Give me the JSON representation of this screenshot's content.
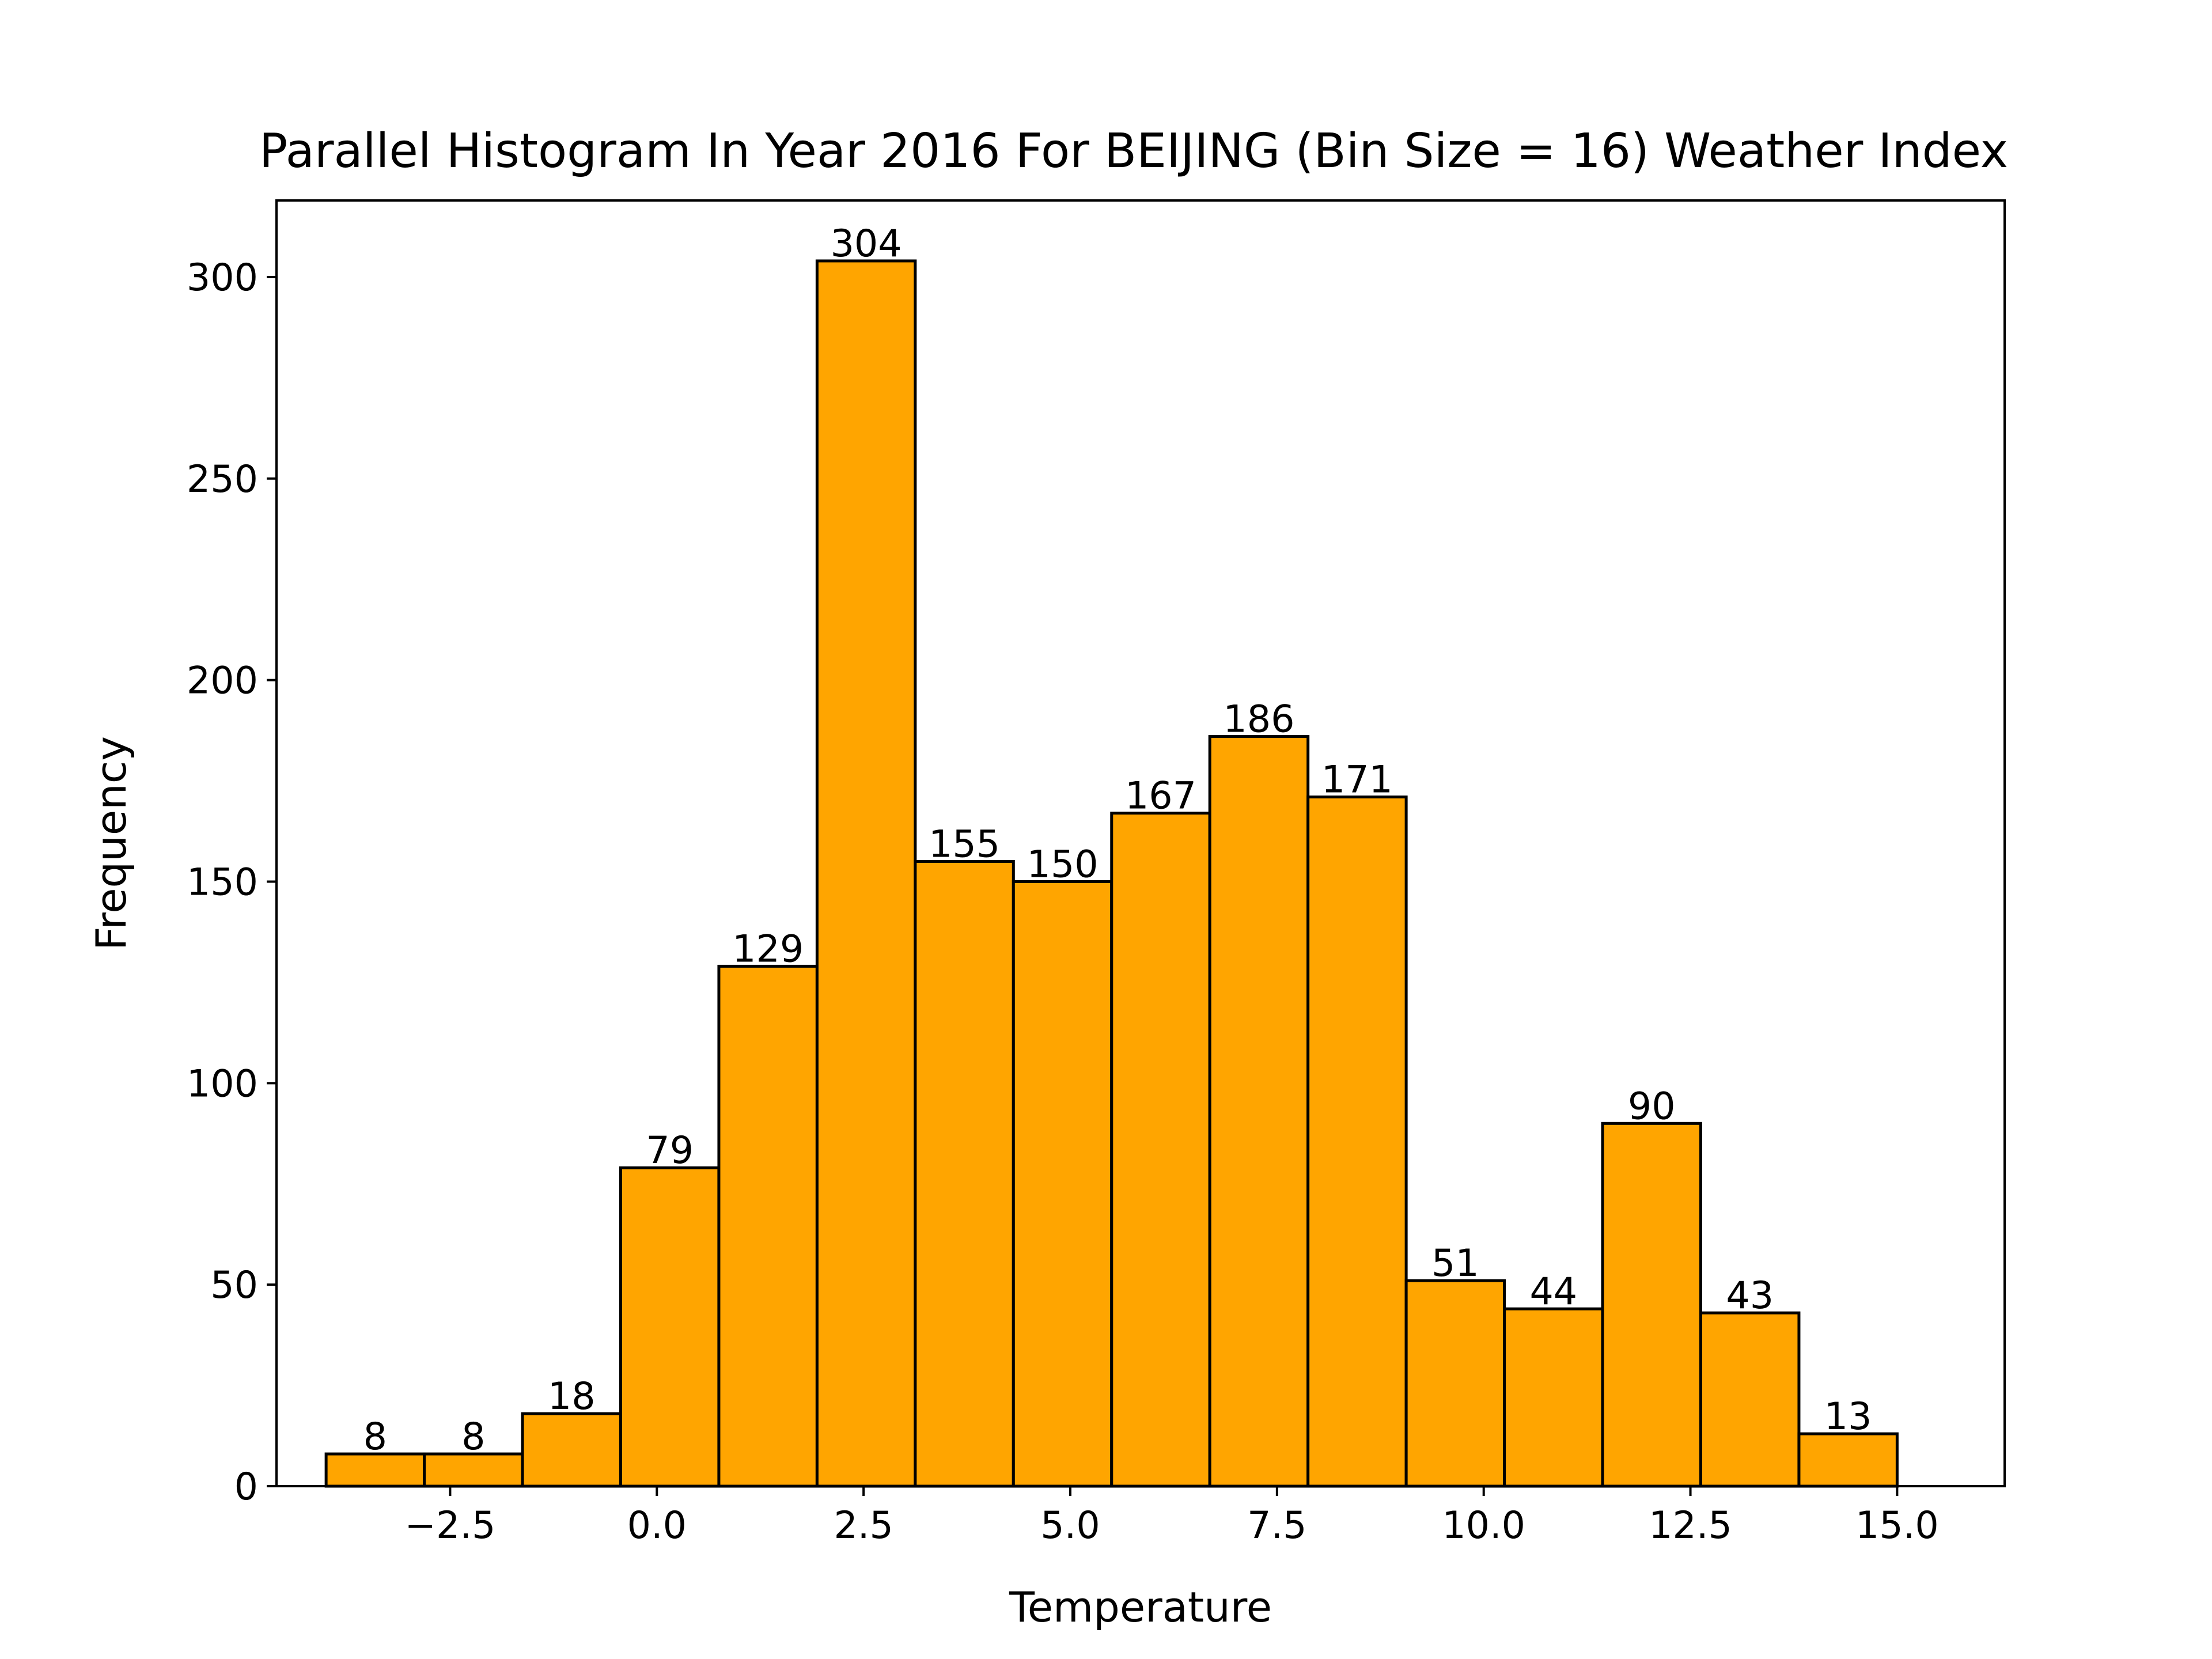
{
  "chart_data": {
    "type": "bar",
    "title": "Parallel Histogram In Year 2016 For BEIJING (Bin Size = 16) Weather Index",
    "xlabel": "Temperature",
    "ylabel": "Frequency",
    "x_range": [
      -4.6,
      16.3
    ],
    "ylim": [
      0,
      319
    ],
    "bin_start": -4.0,
    "bin_width": 1.1875,
    "values": [
      8,
      8,
      18,
      79,
      129,
      304,
      155,
      150,
      167,
      186,
      171,
      51,
      44,
      90,
      43,
      13
    ],
    "x_ticks": [
      -2.5,
      0.0,
      2.5,
      5.0,
      7.5,
      10.0,
      12.5,
      15.0
    ],
    "x_tick_labels": [
      "−2.5",
      "0.0",
      "2.5",
      "5.0",
      "7.5",
      "10.0",
      "12.5",
      "15.0"
    ],
    "y_ticks": [
      0,
      50,
      100,
      150,
      200,
      250,
      300
    ],
    "y_tick_labels": [
      "0",
      "50",
      "100",
      "150",
      "200",
      "250",
      "300"
    ],
    "bar_color": "#FFA500",
    "edge_color": "#000000",
    "grid": false,
    "legend": "none"
  }
}
